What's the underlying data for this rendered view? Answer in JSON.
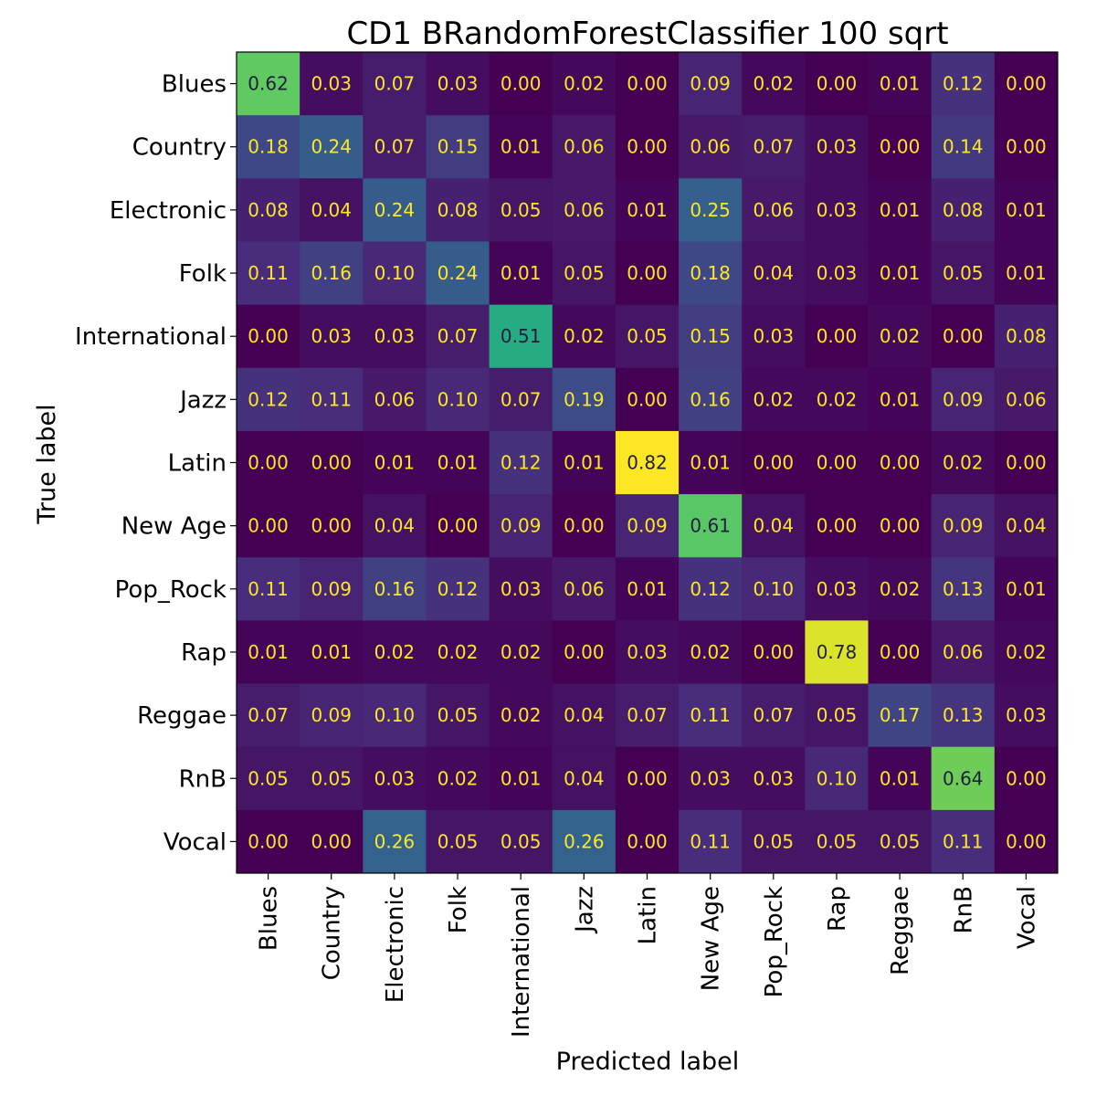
{
  "chart_data": {
    "type": "heatmap",
    "title": "CD1 BRandomForestClassifier 100 sqrt",
    "xlabel": "Predicted label",
    "ylabel": "True label",
    "colormap": "viridis",
    "value_range": [
      0,
      0.82
    ],
    "value_format": "0.00",
    "text_colors": {
      "on_dark": "#fde725",
      "on_light": "#1f1f3d"
    },
    "x_categories": [
      "Blues",
      "Country",
      "Electronic",
      "Folk",
      "International",
      "Jazz",
      "Latin",
      "New Age",
      "Pop_Rock",
      "Rap",
      "Reggae",
      "RnB",
      "Vocal"
    ],
    "y_categories": [
      "Blues",
      "Country",
      "Electronic",
      "Folk",
      "International",
      "Jazz",
      "Latin",
      "New Age",
      "Pop_Rock",
      "Rap",
      "Reggae",
      "RnB",
      "Vocal"
    ],
    "matrix": [
      [
        0.62,
        0.03,
        0.07,
        0.03,
        0.0,
        0.02,
        0.0,
        0.09,
        0.02,
        0.0,
        0.01,
        0.12,
        0.0
      ],
      [
        0.18,
        0.24,
        0.07,
        0.15,
        0.01,
        0.06,
        0.0,
        0.06,
        0.07,
        0.03,
        0.0,
        0.14,
        0.0
      ],
      [
        0.08,
        0.04,
        0.24,
        0.08,
        0.05,
        0.06,
        0.01,
        0.25,
        0.06,
        0.03,
        0.01,
        0.08,
        0.01
      ],
      [
        0.11,
        0.16,
        0.1,
        0.24,
        0.01,
        0.05,
        0.0,
        0.18,
        0.04,
        0.03,
        0.01,
        0.05,
        0.01
      ],
      [
        0.0,
        0.03,
        0.03,
        0.07,
        0.51,
        0.02,
        0.05,
        0.15,
        0.03,
        0.0,
        0.02,
        0.0,
        0.08
      ],
      [
        0.12,
        0.11,
        0.06,
        0.1,
        0.07,
        0.19,
        0.0,
        0.16,
        0.02,
        0.02,
        0.01,
        0.09,
        0.06
      ],
      [
        0.0,
        0.0,
        0.01,
        0.01,
        0.12,
        0.01,
        0.82,
        0.01,
        0.0,
        0.0,
        0.0,
        0.02,
        0.0
      ],
      [
        0.0,
        0.0,
        0.04,
        0.0,
        0.09,
        0.0,
        0.09,
        0.61,
        0.04,
        0.0,
        0.0,
        0.09,
        0.04
      ],
      [
        0.11,
        0.09,
        0.16,
        0.12,
        0.03,
        0.06,
        0.01,
        0.12,
        0.1,
        0.03,
        0.02,
        0.13,
        0.01
      ],
      [
        0.01,
        0.01,
        0.02,
        0.02,
        0.02,
        0.0,
        0.03,
        0.02,
        0.0,
        0.78,
        0.0,
        0.06,
        0.02
      ],
      [
        0.07,
        0.09,
        0.1,
        0.05,
        0.02,
        0.04,
        0.07,
        0.11,
        0.07,
        0.05,
        0.17,
        0.13,
        0.03
      ],
      [
        0.05,
        0.05,
        0.03,
        0.02,
        0.01,
        0.04,
        0.0,
        0.03,
        0.03,
        0.1,
        0.01,
        0.64,
        0.0
      ],
      [
        0.0,
        0.0,
        0.26,
        0.05,
        0.05,
        0.26,
        0.0,
        0.11,
        0.05,
        0.05,
        0.05,
        0.11,
        0.0
      ]
    ],
    "grid": false,
    "legend": "none"
  }
}
